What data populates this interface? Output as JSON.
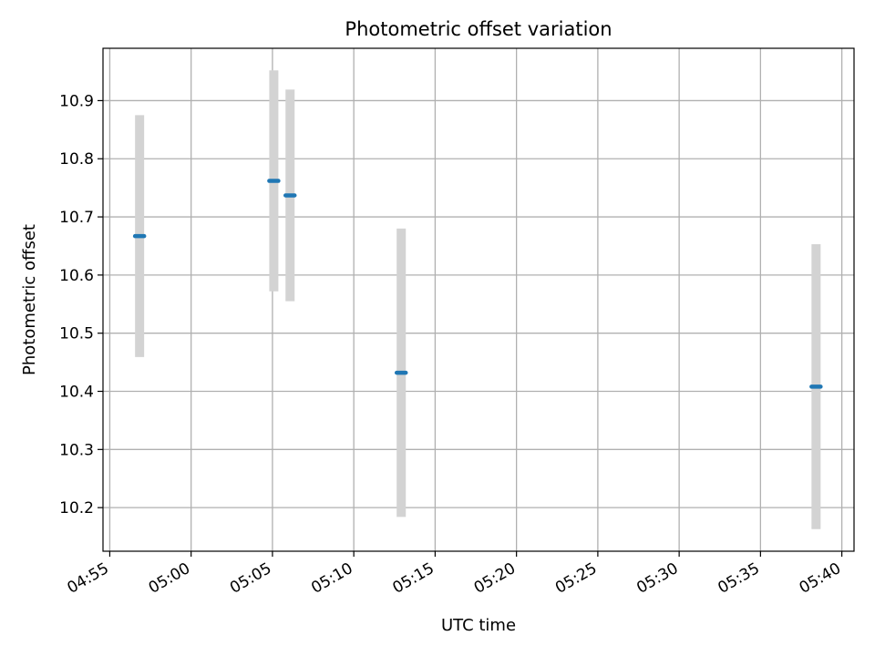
{
  "chart_data": {
    "type": "scatter",
    "title": "Photometric offset variation",
    "xlabel": "UTC time",
    "ylabel": "Photometric offset",
    "grid": true,
    "xlim": [
      "04:54:35",
      "05:40:45"
    ],
    "ylim": [
      10.125,
      10.99
    ],
    "x_ticks": [
      "04:55",
      "05:00",
      "05:05",
      "05:10",
      "05:15",
      "05:20",
      "05:25",
      "05:30",
      "05:35",
      "05:40"
    ],
    "y_ticks": [
      "10.2",
      "10.3",
      "10.4",
      "10.5",
      "10.6",
      "10.7",
      "10.8",
      "10.9"
    ],
    "error_bar_color": "#d3d3d3",
    "marker_color": "#1f77b4",
    "series": [
      {
        "x": [
          "04:56:50",
          "05:05:05",
          "05:06:05",
          "05:12:55",
          "05:38:25"
        ],
        "y": [
          10.667,
          10.762,
          10.737,
          10.432,
          10.408
        ],
        "y_err": [
          0.208,
          0.19,
          0.182,
          0.248,
          0.245
        ]
      }
    ]
  }
}
